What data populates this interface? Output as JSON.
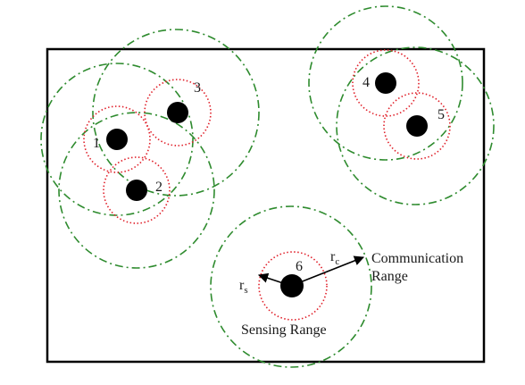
{
  "nodes": [
    {
      "id": "1",
      "label": "1"
    },
    {
      "id": "2",
      "label": "2"
    },
    {
      "id": "3",
      "label": "3"
    },
    {
      "id": "4",
      "label": "4"
    },
    {
      "id": "5",
      "label": "5"
    },
    {
      "id": "6",
      "label": "6"
    }
  ],
  "labels": {
    "rs_main": "r",
    "rs_sub": "s",
    "rc_main": "r",
    "rc_sub": "c",
    "communication_line1": "Communication",
    "communication_line2": "Range",
    "sensing": "Sensing Range"
  },
  "colors": {
    "sensing": "#e0202a",
    "communication": "#2e8b2e",
    "node": "#000000",
    "border": "#000000"
  }
}
